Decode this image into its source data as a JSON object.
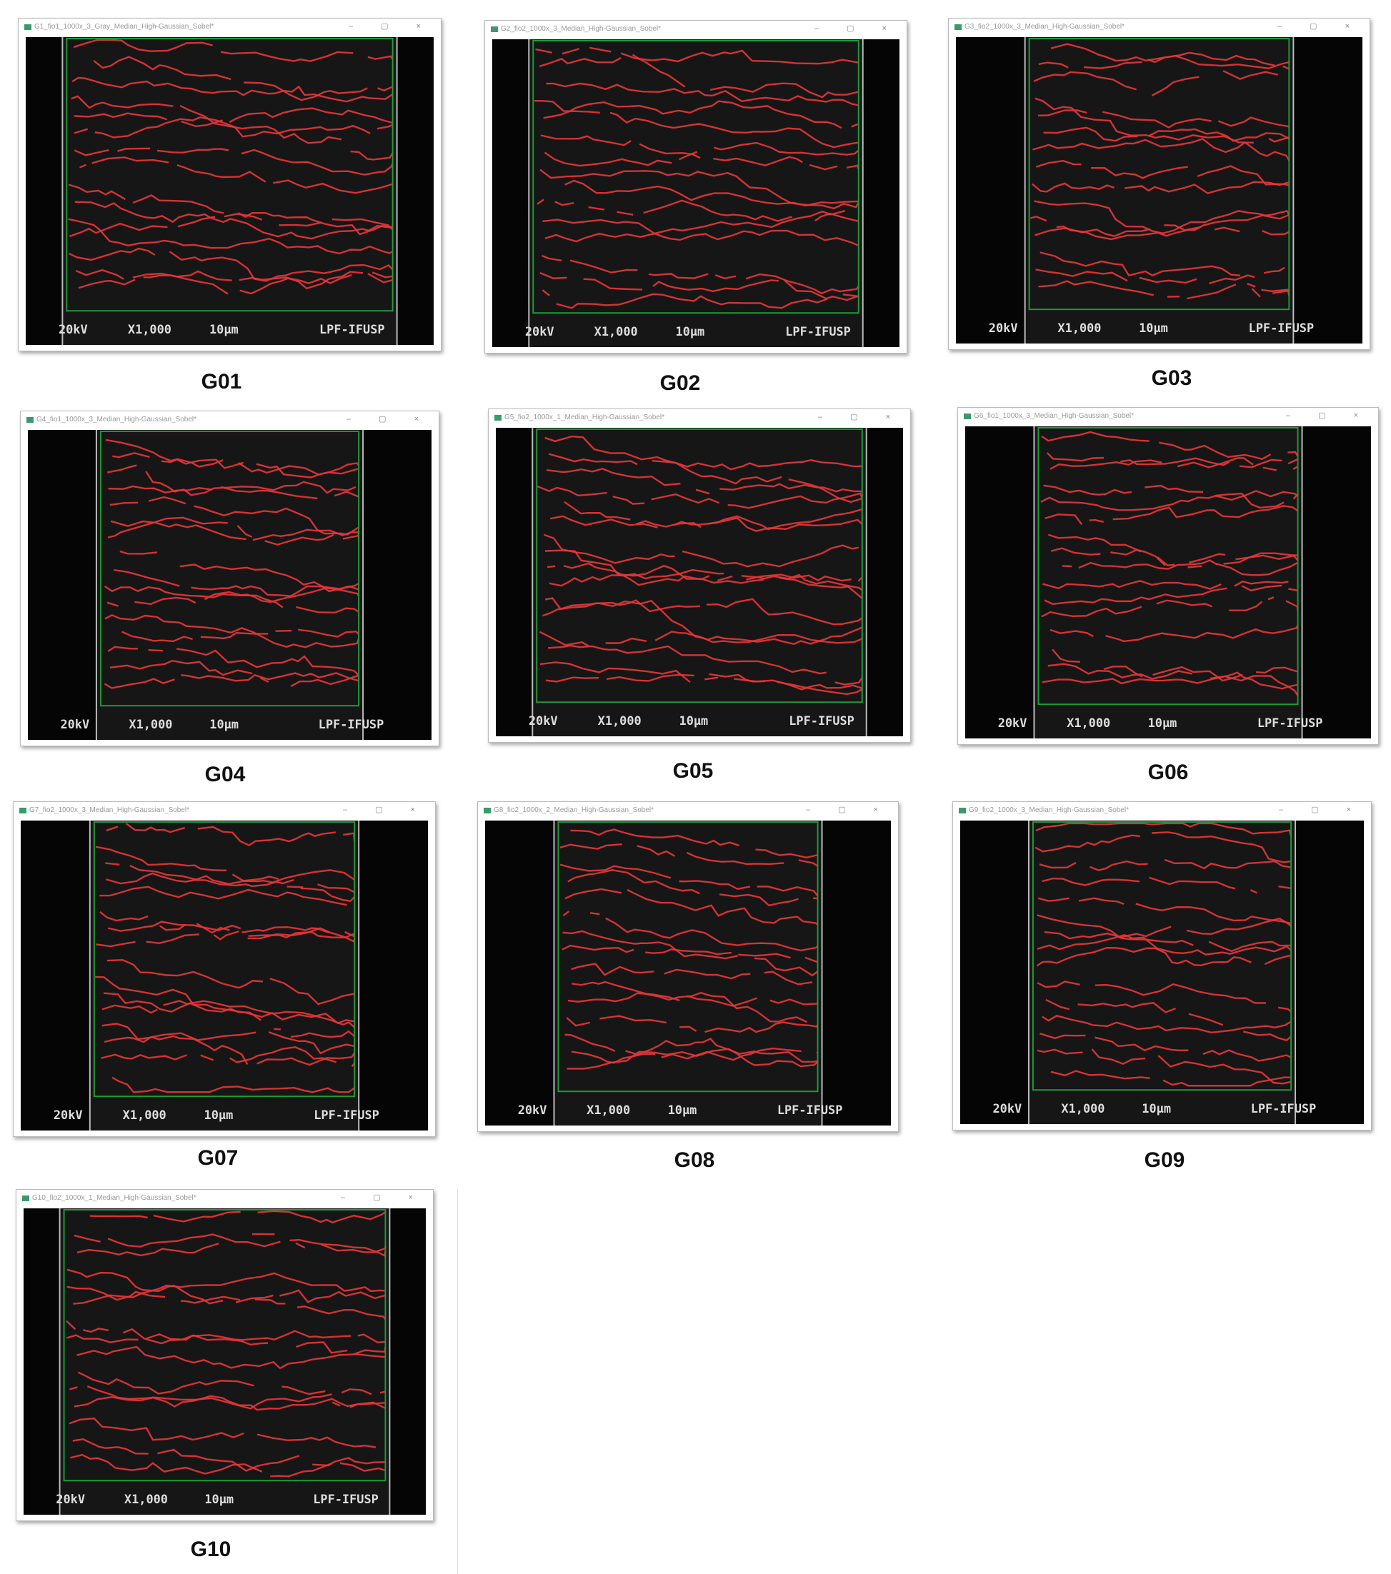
{
  "panels": [
    {
      "label": "G01",
      "title": "G1_fio1_1000x_3_Gray_Median_High-Gaussian_Sobel*",
      "footer": {
        "kv": "20kV",
        "mag": "X1,000",
        "scale": "10µm",
        "lab": "LPF-IFUSP"
      }
    },
    {
      "label": "G02",
      "title": "G2_fio2_1000x_3_Median_High-Gaussian_Sobel*",
      "footer": {
        "kv": "20kV",
        "mag": "X1,000",
        "scale": "10µm",
        "lab": "LPF-IFUSP"
      }
    },
    {
      "label": "G03",
      "title": "G3_fio2_1000x_3_Median_High-Gaussian_Sobel*",
      "footer": {
        "kv": "20kV",
        "mag": "X1,000",
        "scale": "10µm",
        "lab": "LPF-IFUSP"
      }
    },
    {
      "label": "G04",
      "title": "G4_fio1_1000x_3_Median_High-Gaussian_Sobel*",
      "footer": {
        "kv": "20kV",
        "mag": "X1,000",
        "scale": "10µm",
        "lab": "LPF-IFUSP"
      }
    },
    {
      "label": "G05",
      "title": "G5_fio2_1000x_1_Median_High-Gaussian_Sobel*",
      "footer": {
        "kv": "20kV",
        "mag": "X1,000",
        "scale": "10µm",
        "lab": "LPF-IFUSP"
      }
    },
    {
      "label": "G06",
      "title": "G6_fio1_1000x_3_Median_High-Gaussian_Sobel*",
      "footer": {
        "kv": "20kV",
        "mag": "X1,000",
        "scale": "10µm",
        "lab": "LPF-IFUSP"
      }
    },
    {
      "label": "G07",
      "title": "G7_fio2_1000x_3_Median_High-Gaussian_Sobel*",
      "footer": {
        "kv": "20kV",
        "mag": "X1,000",
        "scale": "10µm",
        "lab": "LPF-IFUSP"
      }
    },
    {
      "label": "G08",
      "title": "G8_fio2_1000x_2_Median_High-Gaussian_Sobel*",
      "footer": {
        "kv": "20kV",
        "mag": "X1,000",
        "scale": "10µm",
        "lab": "LPF-IFUSP"
      }
    },
    {
      "label": "G09",
      "title": "G9_fio2_1000x_3_Median_High-Gaussian_Sobel*",
      "footer": {
        "kv": "20kV",
        "mag": "X1,000",
        "scale": "10µm",
        "lab": "LPF-IFUSP"
      }
    },
    {
      "label": "G10",
      "title": "G10_fio2_1000x_1_Median_High-Gaussian_Sobel*",
      "footer": {
        "kv": "20kV",
        "mag": "X1,000",
        "scale": "10µm",
        "lab": "LPF-IFUSP"
      }
    }
  ],
  "window_buttons": "– ▢ ×",
  "colors": {
    "crack": "#e8363a",
    "roi": "#1f9a3a",
    "background": "#050505"
  }
}
